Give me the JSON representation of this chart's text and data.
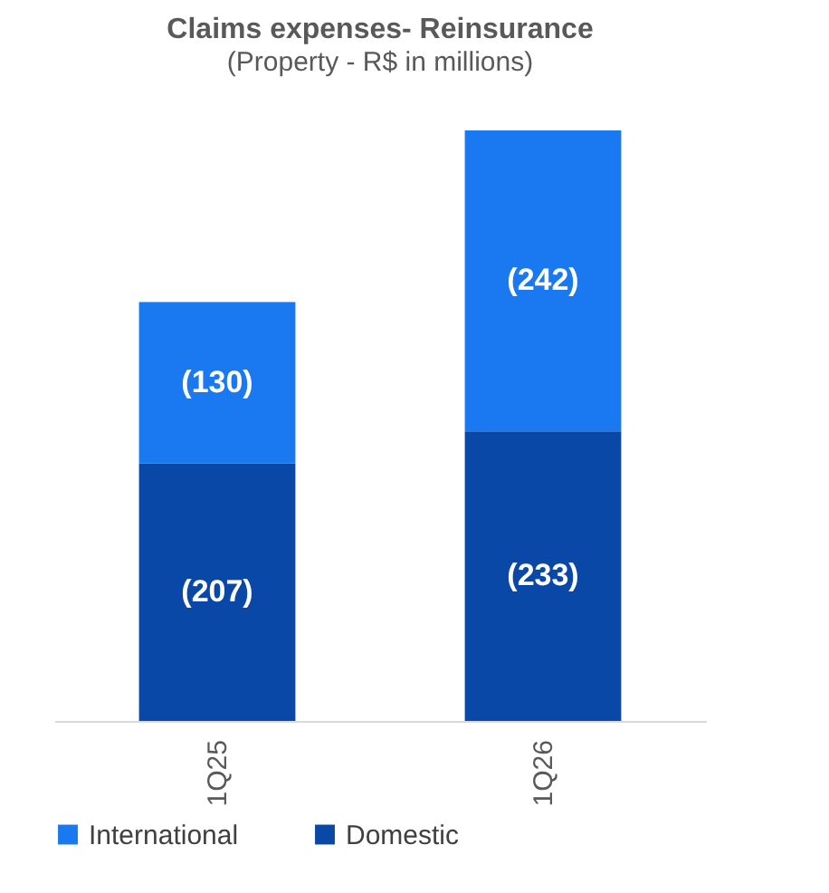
{
  "chart_data": {
    "type": "bar",
    "title": "Claims expenses- Reinsurance",
    "subtitle": "(Property - R$ in millions)",
    "categories": [
      "1Q25",
      "1Q26"
    ],
    "stacked": true,
    "legend": "bottom",
    "grid": false,
    "series": [
      {
        "name": "Domestic",
        "color": "#0a48a8",
        "values": [
          207,
          233
        ],
        "value_labels": [
          "(207)",
          "(233)"
        ]
      },
      {
        "name": "International",
        "color": "#1a78f0",
        "values": [
          130,
          242
        ],
        "value_labels": [
          "(130)",
          "(242)"
        ]
      }
    ]
  }
}
